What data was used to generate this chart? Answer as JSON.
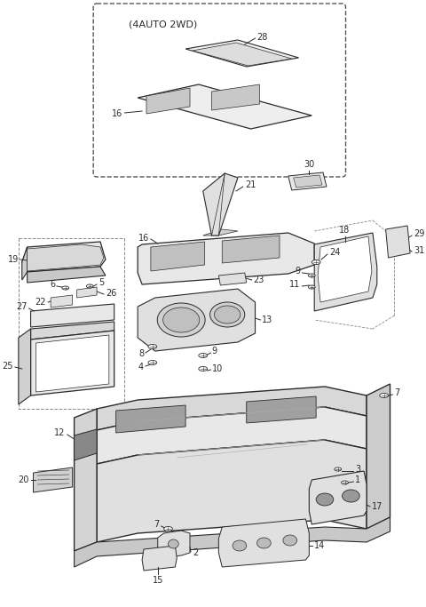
{
  "bg_color": "#ffffff",
  "line_color": "#2a2a2a",
  "fig_width": 4.8,
  "fig_height": 6.83,
  "dpi": 100,
  "inset_label": "(4AUTO 2WD)"
}
